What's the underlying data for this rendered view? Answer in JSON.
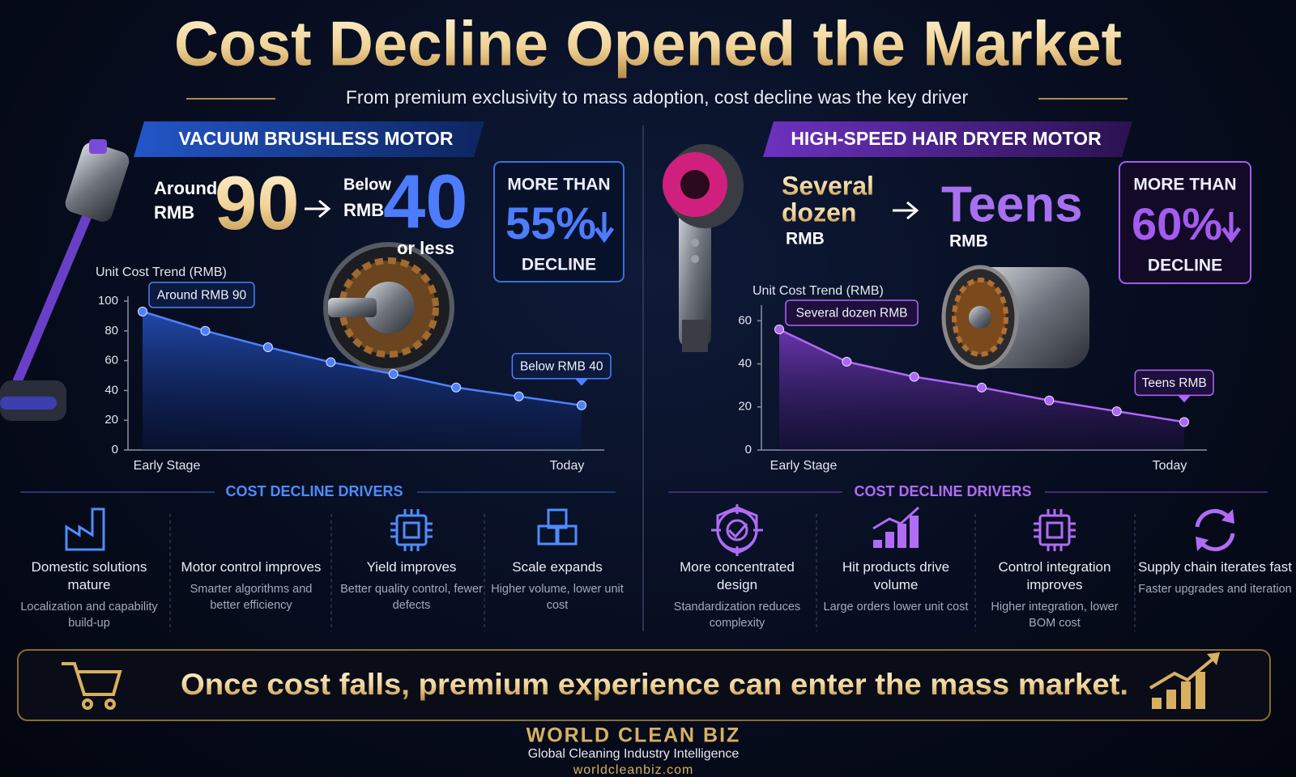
{
  "header": {
    "title": "Cost Decline Opened the Market",
    "subtitle": "From premium exclusivity to mass adoption, cost decline was the key driver"
  },
  "panels": [
    {
      "heading": "VACUUM BRUSHLESS MOTOR",
      "from_prefix": "Around",
      "from_unit": "RMB",
      "from_value": "90",
      "to_prefix": "Below",
      "to_unit": "RMB",
      "to_value": "40",
      "to_suffix": "or less",
      "badge": {
        "top": "MORE THAN",
        "value": "55%",
        "bottom": "DECLINE"
      },
      "drivers_title": "COST DECLINE DRIVERS",
      "drivers": [
        {
          "title": "Domestic solutions mature",
          "desc": "Localization and capability build-up"
        },
        {
          "title": "Motor control improves",
          "desc": "Smarter algorithms and better efficiency"
        },
        {
          "title": "Yield improves",
          "desc": "Better quality control, fewer defects"
        },
        {
          "title": "Scale expands",
          "desc": "Higher volume, lower unit cost"
        }
      ]
    },
    {
      "heading": "HIGH-SPEED HAIR DRYER MOTOR",
      "from_lines": [
        "Several",
        "dozen"
      ],
      "from_unit": "RMB",
      "to_value": "Teens",
      "to_unit": "RMB",
      "badge": {
        "top": "MORE THAN",
        "value": "60%",
        "bottom": "DECLINE"
      },
      "drivers_title": "COST DECLINE DRIVERS",
      "drivers": [
        {
          "title": "More concentrated design",
          "desc": "Standardization reduces complexity"
        },
        {
          "title": "Hit products drive volume",
          "desc": "Large orders lower unit cost"
        },
        {
          "title": "Control integration improves",
          "desc": "Higher integration, lower BOM cost"
        },
        {
          "title": "Supply chain iterates fast",
          "desc": "Faster upgrades and iteration"
        }
      ]
    }
  ],
  "chart_data": [
    {
      "type": "area",
      "title": "Unit Cost Trend (RMB)",
      "categories": [
        "Early Stage",
        null,
        null,
        null,
        null,
        null,
        null,
        "Today"
      ],
      "values": [
        93,
        80,
        69,
        59,
        51,
        42,
        36,
        30
      ],
      "color": "#4d80ff",
      "ylim": [
        0,
        100
      ],
      "yticks": [
        0,
        20,
        40,
        60,
        80,
        100
      ],
      "annotations": [
        "Around RMB 90",
        "Below RMB 40"
      ]
    },
    {
      "type": "area",
      "title": "Unit Cost Trend (RMB)",
      "categories": [
        "Early Stage",
        null,
        null,
        null,
        null,
        null,
        "Today"
      ],
      "values": [
        56,
        41,
        34,
        29,
        23,
        18,
        13
      ],
      "color": "#b066f5",
      "ylim": [
        0,
        65
      ],
      "yticks": [
        0,
        20,
        40,
        60
      ],
      "annotations": [
        "Several dozen RMB",
        "Teens RMB"
      ]
    }
  ],
  "banner": "Once cost falls, premium experience can enter the mass market.",
  "footer": {
    "brand": "WORLD CLEAN BIZ",
    "tagline": "Global Cleaning Industry Intelligence",
    "url": "worldcleanbiz.com"
  }
}
